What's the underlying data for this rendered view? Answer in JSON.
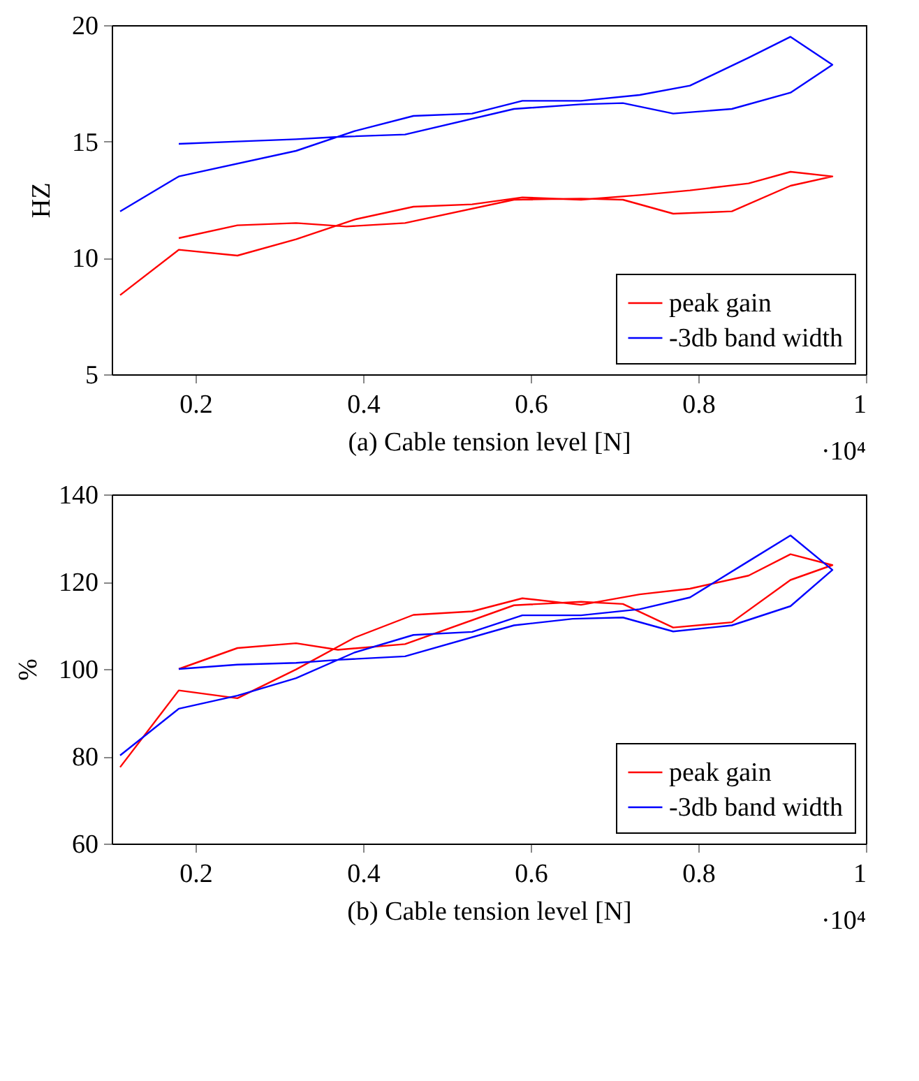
{
  "chart_data": [
    {
      "type": "line",
      "ylabel": "HZ",
      "xlabel": "(a) Cable tension level [N]",
      "annotations": [
        "·10⁴"
      ],
      "xlim": [
        0.1,
        1
      ],
      "xticks": [
        0.2,
        0.4,
        0.6,
        0.8,
        1
      ],
      "ylim": [
        5,
        20
      ],
      "yticks": [
        5,
        10,
        15,
        20
      ],
      "legend": "bottom right",
      "grid": false,
      "marker": "none",
      "line_style": "solid",
      "series": [
        {
          "name": "peak gain",
          "color": "#ff0000",
          "x": [
            0.11,
            0.18,
            0.25,
            0.32,
            0.39,
            0.46,
            0.53,
            0.59,
            0.66,
            0.73,
            0.79,
            0.86,
            0.91,
            0.96,
            0.91,
            0.84,
            0.77,
            0.71,
            0.66,
            0.58,
            0.45,
            0.38,
            0.32,
            0.25,
            0.18
          ],
          "values": [
            8.4,
            10.35,
            10.1,
            10.8,
            11.65,
            12.2,
            12.3,
            12.6,
            12.5,
            12.7,
            12.9,
            13.2,
            13.7,
            13.5,
            13.1,
            12.0,
            11.9,
            12.5,
            12.55,
            12.5,
            11.5,
            11.35,
            11.5,
            11.4,
            10.85
          ]
        },
        {
          "name": "-3db band width",
          "color": "#0000ff",
          "x": [
            0.11,
            0.18,
            0.32,
            0.39,
            0.46,
            0.53,
            0.59,
            0.66,
            0.73,
            0.79,
            0.86,
            0.91,
            0.96,
            0.91,
            0.84,
            0.77,
            0.71,
            0.66,
            0.58,
            0.45,
            0.37,
            0.32,
            0.25,
            0.18
          ],
          "values": [
            12.0,
            13.5,
            14.6,
            15.45,
            16.1,
            16.2,
            16.75,
            16.75,
            17.0,
            17.4,
            18.6,
            19.5,
            18.3,
            17.1,
            16.4,
            16.2,
            16.65,
            16.6,
            16.4,
            15.3,
            15.2,
            15.1,
            15.0,
            14.9
          ]
        }
      ]
    },
    {
      "type": "line",
      "ylabel": "%",
      "xlabel": "(b) Cable tension level [N]",
      "annotations": [
        "·10⁴"
      ],
      "xlim": [
        0.1,
        1
      ],
      "xticks": [
        0.2,
        0.4,
        0.6,
        0.8,
        1
      ],
      "ylim": [
        60,
        140
      ],
      "yticks": [
        60,
        80,
        100,
        120,
        140
      ],
      "legend": "bottom right",
      "grid": false,
      "marker": "none",
      "line_style": "solid",
      "series": [
        {
          "name": "peak gain",
          "color": "#ff0000",
          "x": [
            0.11,
            0.18,
            0.25,
            0.32,
            0.39,
            0.46,
            0.53,
            0.59,
            0.66,
            0.73,
            0.79,
            0.86,
            0.91,
            0.96,
            0.91,
            0.84,
            0.77,
            0.71,
            0.66,
            0.58,
            0.45,
            0.37,
            0.32,
            0.25,
            0.18
          ],
          "values": [
            77.5,
            95.1,
            93.3,
            99.9,
            107.2,
            112.4,
            113.2,
            116.2,
            114.7,
            117.1,
            118.4,
            121.4,
            126.3,
            123.8,
            120.4,
            110.7,
            109.5,
            114.9,
            115.4,
            114.6,
            105.7,
            104.4,
            105.9,
            104.8,
            100.0
          ]
        },
        {
          "name": "-3db band width",
          "color": "#0000ff",
          "x": [
            0.11,
            0.18,
            0.25,
            0.32,
            0.39,
            0.46,
            0.53,
            0.59,
            0.66,
            0.73,
            0.79,
            0.86,
            0.91,
            0.96,
            0.91,
            0.84,
            0.77,
            0.71,
            0.65,
            0.58,
            0.45,
            0.37,
            0.32,
            0.25,
            0.18
          ],
          "values": [
            80.2,
            90.9,
            93.9,
            97.9,
            103.8,
            107.8,
            108.5,
            112.3,
            112.3,
            113.7,
            116.4,
            124.7,
            130.6,
            122.7,
            114.4,
            110.0,
            108.6,
            111.8,
            111.5,
            110.0,
            102.9,
            102.1,
            101.4,
            101.0,
            100.0
          ]
        }
      ]
    }
  ]
}
